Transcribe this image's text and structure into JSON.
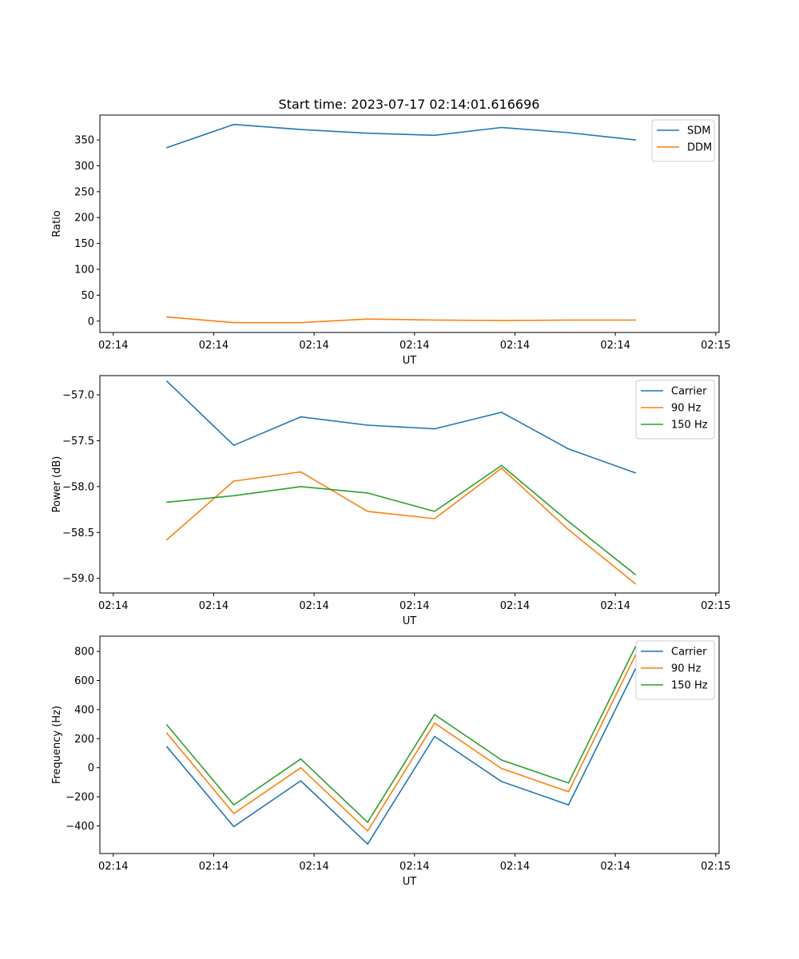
{
  "figure_title": "Start time: 2023-07-17 02:14:01.616696",
  "colors": {
    "series1": "#1f77b4",
    "series2": "#ff7f0e",
    "series3": "#2ca02c"
  },
  "chart_data": [
    {
      "type": "line",
      "title": "Start time: 2023-07-17 02:14:01.616696",
      "xlabel": "UT",
      "ylabel": "Ratio",
      "x": [
        1,
        2,
        3,
        4,
        5,
        6,
        7,
        8
      ],
      "xlim": [
        0,
        9.25
      ],
      "x_ticks": [
        0.2,
        1.7,
        3.2,
        4.7,
        6.2,
        7.7,
        9.2
      ],
      "x_tick_labels": [
        "02:14",
        "02:14",
        "02:14",
        "02:14",
        "02:14",
        "02:14",
        "02:15"
      ],
      "ylim": [
        -22,
        398
      ],
      "y_ticks": [
        0,
        50,
        100,
        150,
        200,
        250,
        300,
        350
      ],
      "y_tick_labels": [
        "0",
        "50",
        "100",
        "150",
        "200",
        "250",
        "300",
        "350"
      ],
      "legend_position": "top-right",
      "series": [
        {
          "name": "SDM",
          "color": "#1f77b4",
          "values": [
            335,
            380,
            370,
            363,
            359,
            374,
            364,
            350
          ]
        },
        {
          "name": "DDM",
          "color": "#ff7f0e",
          "values": [
            8,
            -3,
            -3,
            4,
            2,
            1,
            2,
            2
          ]
        }
      ]
    },
    {
      "type": "line",
      "title": "",
      "xlabel": "UT",
      "ylabel": "Power (dB)",
      "x": [
        1,
        2,
        3,
        4,
        5,
        6,
        7,
        8
      ],
      "xlim": [
        0,
        9.25
      ],
      "x_ticks": [
        0.2,
        1.7,
        3.2,
        4.7,
        6.2,
        7.7,
        9.2
      ],
      "x_tick_labels": [
        "02:14",
        "02:14",
        "02:14",
        "02:14",
        "02:14",
        "02:14",
        "02:15"
      ],
      "ylim": [
        -59.16,
        -56.79
      ],
      "y_ticks": [
        -57.0,
        -57.5,
        -58.0,
        -58.5,
        -59.0
      ],
      "y_tick_labels": [
        "−57.0",
        "−57.5",
        "−58.0",
        "−58.5",
        "−59.0"
      ],
      "legend_position": "top-right",
      "series": [
        {
          "name": "Carrier",
          "color": "#1f77b4",
          "values": [
            -56.85,
            -57.55,
            -57.24,
            -57.33,
            -57.37,
            -57.19,
            -57.59,
            -57.85
          ]
        },
        {
          "name": "90 Hz",
          "color": "#ff7f0e",
          "values": [
            -58.58,
            -57.94,
            -57.84,
            -58.27,
            -58.35,
            -57.8,
            -58.47,
            -59.06
          ]
        },
        {
          "name": "150 Hz",
          "color": "#2ca02c",
          "values": [
            -58.17,
            -58.1,
            -58.0,
            -58.07,
            -58.27,
            -57.77,
            -58.38,
            -58.96
          ]
        }
      ]
    },
    {
      "type": "line",
      "title": "",
      "xlabel": "UT",
      "ylabel": "Frequency (Hz)",
      "x": [
        1,
        2,
        3,
        4,
        5,
        6,
        7,
        8
      ],
      "xlim": [
        0,
        9.25
      ],
      "x_ticks": [
        0.2,
        1.7,
        3.2,
        4.7,
        6.2,
        7.7,
        9.2
      ],
      "x_tick_labels": [
        "02:14",
        "02:14",
        "02:14",
        "02:14",
        "02:14",
        "02:14",
        "02:15"
      ],
      "ylim": [
        -590,
        905
      ],
      "y_ticks": [
        -400,
        -200,
        0,
        200,
        400,
        600,
        800
      ],
      "y_tick_labels": [
        "−400",
        "−200",
        "0",
        "200",
        "400",
        "600",
        "800"
      ],
      "legend_position": "top-right",
      "series": [
        {
          "name": "Carrier",
          "color": "#1f77b4",
          "values": [
            145,
            -405,
            -90,
            -525,
            215,
            -95,
            -255,
            680
          ]
        },
        {
          "name": "90 Hz",
          "color": "#ff7f0e",
          "values": [
            238,
            -315,
            0,
            -435,
            307,
            -5,
            -165,
            775
          ]
        },
        {
          "name": "150 Hz",
          "color": "#2ca02c",
          "values": [
            295,
            -255,
            60,
            -375,
            365,
            53,
            -105,
            833
          ]
        }
      ]
    }
  ]
}
